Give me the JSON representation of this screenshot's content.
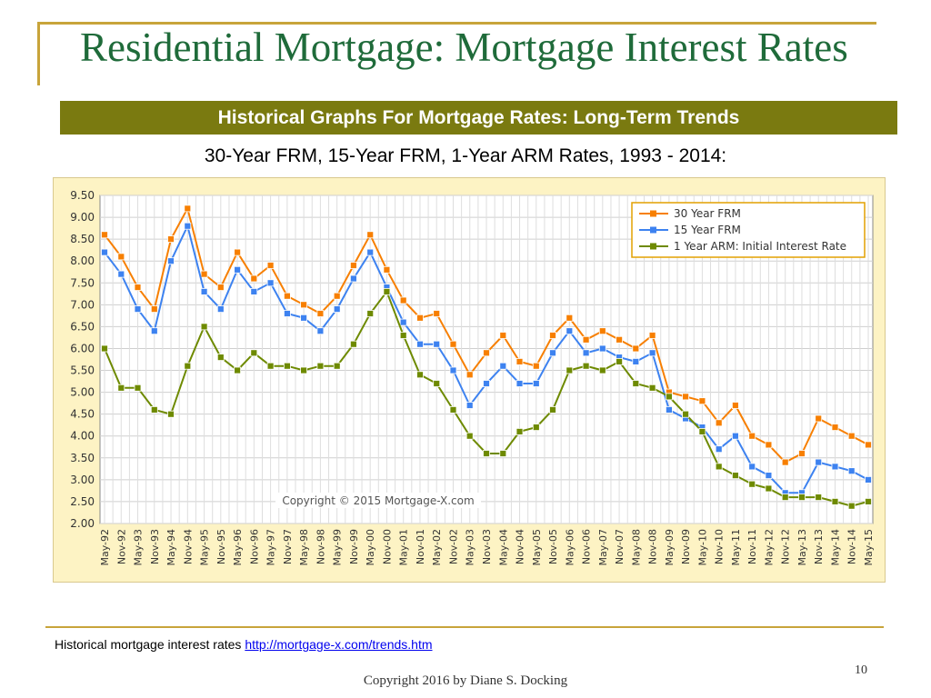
{
  "slide": {
    "title": "Residential Mortgage: Mortgage Interest Rates",
    "banner": "Historical Graphs For Mortgage Rates: Long-Term Trends",
    "subtitle": "30-Year FRM, 15-Year FRM, 1-Year ARM Rates, 1993 - 2014:",
    "footnote_text": "Historical mortgage interest rates ",
    "footnote_link": "http://mortgage-x.com/trends.htm",
    "page_number": "10",
    "copyright": "Copyright 2016 by Diane S. Docking"
  },
  "colors": {
    "frm30": "#f77f00",
    "frm15": "#3d82f0",
    "arm1": "#6e8a00",
    "gold": "#c8a43a",
    "banner": "#7a7a10",
    "title": "#1f6b3a"
  },
  "chart_data": {
    "type": "line",
    "watermark": "Copyright © 2015 Mortgage-X.com",
    "ylim": [
      2.0,
      9.5
    ],
    "y_ticks": [
      "9.50",
      "9.00",
      "8.50",
      "8.00",
      "7.50",
      "7.00",
      "6.50",
      "6.00",
      "5.50",
      "5.00",
      "4.50",
      "4.00",
      "3.50",
      "3.00",
      "2.50",
      "2.00"
    ],
    "x_ticks": [
      "May-92",
      "Nov-92",
      "May-93",
      "Nov-93",
      "May-94",
      "Nov-94",
      "May-95",
      "Nov-95",
      "May-96",
      "Nov-96",
      "May-97",
      "Nov-97",
      "May-98",
      "Nov-98",
      "May-99",
      "Nov-99",
      "May-00",
      "Nov-00",
      "May-01",
      "Nov-01",
      "May-02",
      "Nov-02",
      "May-03",
      "Nov-03",
      "May-04",
      "Nov-04",
      "May-05",
      "Nov-05",
      "May-06",
      "Nov-06",
      "May-07",
      "Nov-07",
      "May-08",
      "Nov-08",
      "May-09",
      "Nov-09",
      "May-10",
      "Nov-10",
      "May-11",
      "Nov-11",
      "May-12",
      "Nov-12",
      "May-13",
      "Nov-13",
      "May-14",
      "Nov-14",
      "May-15"
    ],
    "legend_position": "top-right",
    "grid": true,
    "series": [
      {
        "name": "30 Year FRM",
        "color": "#f77f00",
        "points": [
          [
            "May-92",
            8.6
          ],
          [
            "Nov-92",
            8.1
          ],
          [
            "May-93",
            7.4
          ],
          [
            "Nov-93",
            6.9
          ],
          [
            "May-94",
            8.5
          ],
          [
            "Nov-94",
            9.2
          ],
          [
            "May-95",
            7.7
          ],
          [
            "Nov-95",
            7.4
          ],
          [
            "May-96",
            8.2
          ],
          [
            "Nov-96",
            7.6
          ],
          [
            "May-97",
            7.9
          ],
          [
            "Nov-97",
            7.2
          ],
          [
            "May-98",
            7.0
          ],
          [
            "Nov-98",
            6.8
          ],
          [
            "May-99",
            7.2
          ],
          [
            "Nov-99",
            7.9
          ],
          [
            "May-00",
            8.6
          ],
          [
            "Nov-00",
            7.8
          ],
          [
            "May-01",
            7.1
          ],
          [
            "Nov-01",
            6.7
          ],
          [
            "May-02",
            6.8
          ],
          [
            "Nov-02",
            6.1
          ],
          [
            "May-03",
            5.4
          ],
          [
            "Nov-03",
            5.9
          ],
          [
            "May-04",
            6.3
          ],
          [
            "Nov-04",
            5.7
          ],
          [
            "May-05",
            5.6
          ],
          [
            "Nov-05",
            6.3
          ],
          [
            "May-06",
            6.7
          ],
          [
            "Nov-06",
            6.2
          ],
          [
            "May-07",
            6.4
          ],
          [
            "Nov-07",
            6.2
          ],
          [
            "May-08",
            6.0
          ],
          [
            "Nov-08",
            6.3
          ],
          [
            "May-09",
            5.0
          ],
          [
            "Nov-09",
            4.9
          ],
          [
            "May-10",
            4.8
          ],
          [
            "Nov-10",
            4.3
          ],
          [
            "May-11",
            4.7
          ],
          [
            "Nov-11",
            4.0
          ],
          [
            "May-12",
            3.8
          ],
          [
            "Nov-12",
            3.4
          ],
          [
            "May-13",
            3.6
          ],
          [
            "Nov-13",
            4.4
          ],
          [
            "May-14",
            4.2
          ],
          [
            "Nov-14",
            4.0
          ],
          [
            "May-15",
            3.8
          ]
        ]
      },
      {
        "name": "15 Year FRM",
        "color": "#3d82f0",
        "points": [
          [
            "May-92",
            8.2
          ],
          [
            "Nov-92",
            7.7
          ],
          [
            "May-93",
            6.9
          ],
          [
            "Nov-93",
            6.4
          ],
          [
            "May-94",
            8.0
          ],
          [
            "Nov-94",
            8.8
          ],
          [
            "May-95",
            7.3
          ],
          [
            "Nov-95",
            6.9
          ],
          [
            "May-96",
            7.8
          ],
          [
            "Nov-96",
            7.3
          ],
          [
            "May-97",
            7.5
          ],
          [
            "Nov-97",
            6.8
          ],
          [
            "May-98",
            6.7
          ],
          [
            "Nov-98",
            6.4
          ],
          [
            "May-99",
            6.9
          ],
          [
            "Nov-99",
            7.6
          ],
          [
            "May-00",
            8.2
          ],
          [
            "Nov-00",
            7.4
          ],
          [
            "May-01",
            6.6
          ],
          [
            "Nov-01",
            6.1
          ],
          [
            "May-02",
            6.1
          ],
          [
            "Nov-02",
            5.5
          ],
          [
            "May-03",
            4.7
          ],
          [
            "Nov-03",
            5.2
          ],
          [
            "May-04",
            5.6
          ],
          [
            "Nov-04",
            5.2
          ],
          [
            "May-05",
            5.2
          ],
          [
            "Nov-05",
            5.9
          ],
          [
            "May-06",
            6.4
          ],
          [
            "Nov-06",
            5.9
          ],
          [
            "May-07",
            6.0
          ],
          [
            "Nov-07",
            5.8
          ],
          [
            "May-08",
            5.7
          ],
          [
            "Nov-08",
            5.9
          ],
          [
            "May-09",
            4.6
          ],
          [
            "Nov-09",
            4.4
          ],
          [
            "May-10",
            4.2
          ],
          [
            "Nov-10",
            3.7
          ],
          [
            "May-11",
            4.0
          ],
          [
            "Nov-11",
            3.3
          ],
          [
            "May-12",
            3.1
          ],
          [
            "Nov-12",
            2.7
          ],
          [
            "May-13",
            2.7
          ],
          [
            "Nov-13",
            3.4
          ],
          [
            "May-14",
            3.3
          ],
          [
            "Nov-14",
            3.2
          ],
          [
            "May-15",
            3.0
          ]
        ]
      },
      {
        "name": "1 Year ARM: Initial Interest Rate",
        "color": "#6e8a00",
        "points": [
          [
            "May-92",
            6.0
          ],
          [
            "Nov-92",
            5.1
          ],
          [
            "May-93",
            5.1
          ],
          [
            "Nov-93",
            4.6
          ],
          [
            "May-94",
            4.5
          ],
          [
            "Nov-94",
            5.6
          ],
          [
            "May-95",
            6.5
          ],
          [
            "Nov-95",
            5.8
          ],
          [
            "May-96",
            5.5
          ],
          [
            "Nov-96",
            5.9
          ],
          [
            "May-97",
            5.6
          ],
          [
            "Nov-97",
            5.6
          ],
          [
            "May-98",
            5.5
          ],
          [
            "Nov-98",
            5.6
          ],
          [
            "May-99",
            5.6
          ],
          [
            "Nov-99",
            6.1
          ],
          [
            "May-00",
            6.8
          ],
          [
            "Nov-00",
            7.3
          ],
          [
            "May-01",
            6.3
          ],
          [
            "Nov-01",
            5.4
          ],
          [
            "May-02",
            5.2
          ],
          [
            "Nov-02",
            4.6
          ],
          [
            "May-03",
            4.0
          ],
          [
            "Nov-03",
            3.6
          ],
          [
            "May-04",
            3.6
          ],
          [
            "Nov-04",
            4.1
          ],
          [
            "May-05",
            4.2
          ],
          [
            "Nov-05",
            4.6
          ],
          [
            "May-06",
            5.5
          ],
          [
            "Nov-06",
            5.6
          ],
          [
            "May-07",
            5.5
          ],
          [
            "Nov-07",
            5.7
          ],
          [
            "May-08",
            5.2
          ],
          [
            "Nov-08",
            5.1
          ],
          [
            "May-09",
            4.9
          ],
          [
            "Nov-09",
            4.5
          ],
          [
            "May-10",
            4.1
          ],
          [
            "Nov-10",
            3.3
          ],
          [
            "May-11",
            3.1
          ],
          [
            "Nov-11",
            2.9
          ],
          [
            "May-12",
            2.8
          ],
          [
            "Nov-12",
            2.6
          ],
          [
            "May-13",
            2.6
          ],
          [
            "Nov-13",
            2.6
          ],
          [
            "May-14",
            2.5
          ],
          [
            "Nov-14",
            2.4
          ],
          [
            "May-15",
            2.5
          ]
        ]
      }
    ]
  }
}
